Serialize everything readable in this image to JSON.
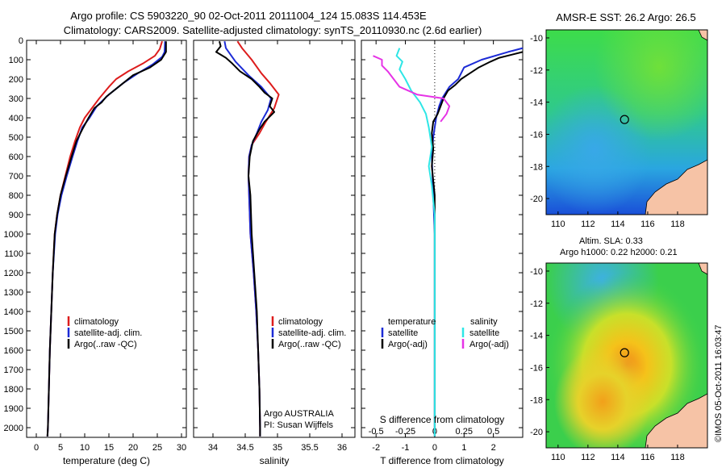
{
  "header": {
    "line1": "Argo profile: CS 5903220_90 02-Oct-2011 20111004_124 15.083S 114.453E",
    "line2": "Climatology: CARS2009. Satellite-adjusted climatology: synTS_20110930.nc (2.6d earlier)"
  },
  "colors": {
    "climatology": "#dd1c1c",
    "satellite": "#1c2bd6",
    "argo": "#000000",
    "sat_s": "#2ee6e6",
    "argo_s": "#e633e6"
  },
  "chart_data": [
    {
      "type": "line",
      "name": "temperature",
      "xlabel": "temperature (deg C)",
      "ylabel": "",
      "xlim": [
        -2,
        31
      ],
      "ylim": [
        0,
        2050
      ],
      "xticks": [
        0,
        5,
        10,
        15,
        20,
        25,
        30
      ],
      "yticks": [
        0,
        100,
        200,
        300,
        400,
        500,
        600,
        700,
        800,
        900,
        1000,
        1100,
        1200,
        1300,
        1400,
        1500,
        1600,
        1700,
        1800,
        1900,
        2000
      ],
      "legend": [
        "climatology",
        "satellite-adj. clim.",
        "Argo(..raw -QC)"
      ],
      "series": [
        {
          "name": "climatology",
          "color": "#dd1c1c",
          "points": [
            [
              26.0,
              5
            ],
            [
              25.5,
              45
            ],
            [
              24.5,
              80
            ],
            [
              22.0,
              120
            ],
            [
              19.0,
              160
            ],
            [
              16.5,
              200
            ],
            [
              15.0,
              240
            ],
            [
              13.0,
              300
            ],
            [
              11.5,
              350
            ],
            [
              10.0,
              400
            ],
            [
              9.0,
              450
            ],
            [
              8.0,
              520
            ],
            [
              7.0,
              600
            ],
            [
              6.0,
              700
            ],
            [
              5.0,
              800
            ],
            [
              4.3,
              900
            ],
            [
              3.8,
              1000
            ],
            [
              3.4,
              1200
            ],
            [
              3.1,
              1400
            ],
            [
              2.8,
              1600
            ],
            [
              2.6,
              1800
            ],
            [
              2.4,
              2000
            ],
            [
              2.3,
              2045
            ]
          ]
        },
        {
          "name": "satellite-adj. clim.",
          "color": "#1c2bd6",
          "points": [
            [
              26.6,
              5
            ],
            [
              26.5,
              60
            ],
            [
              26.0,
              85
            ],
            [
              24.0,
              125
            ],
            [
              21.0,
              170
            ],
            [
              18.0,
              220
            ],
            [
              15.0,
              280
            ],
            [
              12.5,
              340
            ],
            [
              11.0,
              400
            ],
            [
              9.5,
              450
            ],
            [
              8.5,
              520
            ],
            [
              7.5,
              600
            ],
            [
              6.3,
              700
            ],
            [
              5.2,
              800
            ],
            [
              4.4,
              900
            ],
            [
              3.9,
              1000
            ],
            [
              3.4,
              1200
            ],
            [
              3.1,
              1400
            ],
            [
              2.8,
              1600
            ],
            [
              2.6,
              1800
            ],
            [
              2.4,
              2000
            ],
            [
              2.3,
              2045
            ]
          ]
        },
        {
          "name": "Argo(..raw -QC)",
          "color": "#000000",
          "points": [
            [
              26.8,
              5
            ],
            [
              26.8,
              60
            ],
            [
              25.8,
              100
            ],
            [
              23.5,
              140
            ],
            [
              20.0,
              180
            ],
            [
              17.5,
              230
            ],
            [
              14.5,
              290
            ],
            [
              13.5,
              320
            ],
            [
              12.0,
              350
            ],
            [
              10.8,
              400
            ],
            [
              9.5,
              460
            ],
            [
              8.3,
              520
            ],
            [
              7.3,
              600
            ],
            [
              6.1,
              700
            ],
            [
              5.0,
              800
            ],
            [
              4.3,
              900
            ],
            [
              3.8,
              1000
            ],
            [
              3.4,
              1200
            ],
            [
              3.1,
              1400
            ],
            [
              2.8,
              1600
            ],
            [
              2.6,
              1800
            ],
            [
              2.4,
              2000
            ],
            [
              2.3,
              2045
            ]
          ]
        }
      ]
    },
    {
      "type": "line",
      "name": "salinity",
      "xlabel": "salinity",
      "xlim": [
        33.7,
        36.2
      ],
      "ylim": [
        0,
        2050
      ],
      "xticks": [
        34,
        34.5,
        35,
        35.5,
        36
      ],
      "legend": [
        "climatology",
        "satellite-adj. clim.",
        "Argo(..raw -QC)"
      ],
      "note1": "Argo AUSTRALIA",
      "note2": "PI: Susan Wijffels",
      "series": [
        {
          "name": "climatology",
          "color": "#dd1c1c",
          "points": [
            [
              34.38,
              5
            ],
            [
              34.45,
              40
            ],
            [
              34.6,
              100
            ],
            [
              34.75,
              170
            ],
            [
              34.88,
              220
            ],
            [
              35.02,
              280
            ],
            [
              34.95,
              350
            ],
            [
              34.82,
              420
            ],
            [
              34.72,
              480
            ],
            [
              34.6,
              540
            ],
            [
              34.56,
              600
            ],
            [
              34.55,
              700
            ],
            [
              34.56,
              800
            ],
            [
              34.58,
              1000
            ],
            [
              34.63,
              1200
            ],
            [
              34.67,
              1400
            ],
            [
              34.7,
              1600
            ],
            [
              34.72,
              1800
            ],
            [
              34.73,
              2000
            ],
            [
              34.73,
              2045
            ]
          ]
        },
        {
          "name": "satellite-adj. clim.",
          "color": "#1c2bd6",
          "points": [
            [
              34.18,
              5
            ],
            [
              34.2,
              40
            ],
            [
              34.35,
              110
            ],
            [
              34.55,
              180
            ],
            [
              34.75,
              240
            ],
            [
              34.9,
              300
            ],
            [
              34.85,
              360
            ],
            [
              34.75,
              420
            ],
            [
              34.68,
              480
            ],
            [
              34.6,
              540
            ],
            [
              34.56,
              600
            ],
            [
              34.55,
              700
            ],
            [
              34.56,
              800
            ],
            [
              34.58,
              1000
            ],
            [
              34.63,
              1200
            ],
            [
              34.67,
              1400
            ],
            [
              34.7,
              1600
            ],
            [
              34.72,
              1800
            ],
            [
              34.73,
              2000
            ],
            [
              34.73,
              2045
            ]
          ]
        },
        {
          "name": "Argo(..raw -QC)",
          "color": "#000000",
          "points": [
            [
              34.1,
              5
            ],
            [
              34.12,
              30
            ],
            [
              34.05,
              60
            ],
            [
              34.2,
              90
            ],
            [
              34.3,
              120
            ],
            [
              34.42,
              160
            ],
            [
              34.6,
              200
            ],
            [
              34.72,
              240
            ],
            [
              34.8,
              270
            ],
            [
              34.92,
              300
            ],
            [
              34.88,
              340
            ],
            [
              34.95,
              370
            ],
            [
              34.8,
              420
            ],
            [
              34.72,
              460
            ],
            [
              34.62,
              520
            ],
            [
              34.57,
              600
            ],
            [
              34.55,
              700
            ],
            [
              34.58,
              800
            ],
            [
              34.6,
              1000
            ],
            [
              34.64,
              1200
            ],
            [
              34.68,
              1400
            ],
            [
              34.7,
              1600
            ],
            [
              34.72,
              1800
            ],
            [
              34.73,
              2000
            ],
            [
              34.73,
              2045
            ]
          ]
        }
      ]
    },
    {
      "type": "line",
      "name": "differences",
      "xlabel": "T difference from climatology",
      "xlim": [
        -2.5,
        3
      ],
      "ylim": [
        0,
        2050
      ],
      "xticks": [
        -2,
        -1,
        0,
        1,
        2
      ],
      "top_label": "S difference from climatology",
      "top_ticks": [
        "-0.5",
        "-0.25",
        "0",
        "0.25",
        "0.5"
      ],
      "top_tick_x": [
        -2,
        -1,
        0,
        1,
        2
      ],
      "legend_left_title": "temperature",
      "legend_right_title": "salinity",
      "legend_left": [
        "satellite",
        "Argo(-adj)"
      ],
      "legend_right": [
        "satellite",
        "Argo(-adj)"
      ],
      "series": [
        {
          "name": "T satellite",
          "color": "#1c2bd6",
          "points": [
            [
              3.0,
              40
            ],
            [
              2.5,
              60
            ],
            [
              1.6,
              100
            ],
            [
              1.0,
              140
            ],
            [
              0.8,
              200
            ],
            [
              0.5,
              240
            ],
            [
              0.25,
              300
            ],
            [
              0.15,
              340
            ],
            [
              0.05,
              400
            ],
            [
              -0.05,
              500
            ],
            [
              -0.1,
              600
            ],
            [
              -0.05,
              800
            ],
            [
              0.0,
              1000
            ],
            [
              0.0,
              1500
            ],
            [
              0.0,
              2045
            ]
          ]
        },
        {
          "name": "T Argo(-adj)",
          "color": "#000000",
          "points": [
            [
              3.0,
              60
            ],
            [
              2.2,
              90
            ],
            [
              1.9,
              110
            ],
            [
              1.5,
              140
            ],
            [
              1.2,
              170
            ],
            [
              0.9,
              200
            ],
            [
              0.7,
              230
            ],
            [
              0.45,
              260
            ],
            [
              0.3,
              300
            ],
            [
              0.2,
              340
            ],
            [
              0.1,
              380
            ],
            [
              -0.05,
              420
            ],
            [
              -0.1,
              480
            ],
            [
              -0.05,
              560
            ],
            [
              -0.1,
              650
            ],
            [
              0.0,
              800
            ],
            [
              0.0,
              1000
            ],
            [
              0.0,
              1500
            ],
            [
              0.0,
              2045
            ]
          ]
        },
        {
          "name": "S satellite",
          "color": "#2ee6e6",
          "points": [
            [
              -1.2,
              40
            ],
            [
              -1.3,
              80
            ],
            [
              -1.1,
              110
            ],
            [
              -1.2,
              150
            ],
            [
              -1.0,
              200
            ],
            [
              -0.8,
              260
            ],
            [
              -0.5,
              320
            ],
            [
              -0.3,
              380
            ],
            [
              -0.2,
              450
            ],
            [
              -0.1,
              550
            ],
            [
              -0.2,
              650
            ],
            [
              -0.1,
              750
            ],
            [
              0.0,
              900
            ],
            [
              0.0,
              1200
            ],
            [
              0.0,
              2045
            ]
          ]
        },
        {
          "name": "S Argo(-adj)",
          "color": "#e633e6",
          "points": [
            [
              -2.1,
              80
            ],
            [
              -1.8,
              100
            ],
            [
              -1.8,
              130
            ],
            [
              -1.6,
              160
            ],
            [
              -1.4,
              200
            ],
            [
              -1.2,
              240
            ],
            [
              -0.6,
              280
            ],
            [
              0.3,
              300
            ],
            [
              0.5,
              340
            ],
            [
              0.4,
              380
            ],
            [
              0.2,
              420
            ]
          ]
        }
      ]
    },
    {
      "type": "heatmap",
      "name": "AMSR-E SST map",
      "title": "AMSR-E SST: 26.2 Argo: 26.5",
      "xlim": [
        109.2,
        120
      ],
      "ylim": [
        -21,
        -9.5
      ],
      "xticks": [
        110,
        112,
        114,
        116,
        118
      ],
      "yticks": [
        -10,
        -12,
        -14,
        -16,
        -18,
        -20
      ],
      "marker": [
        114.45,
        -15.08
      ]
    },
    {
      "type": "heatmap",
      "name": "Altimetry SLA map",
      "title1": "Altim. SLA: 0.33",
      "title2": "Argo h1000: 0.22 h2000: 0.21",
      "xlim": [
        109.2,
        120
      ],
      "ylim": [
        -21,
        -9.5
      ],
      "xticks": [
        110,
        112,
        114,
        116,
        118
      ],
      "yticks": [
        -10,
        -12,
        -14,
        -16,
        -18,
        -20
      ],
      "marker": [
        114.45,
        -15.08
      ]
    }
  ],
  "footer": {
    "stamp": "©IMOS 05-Oct-2011 16:03:47"
  }
}
